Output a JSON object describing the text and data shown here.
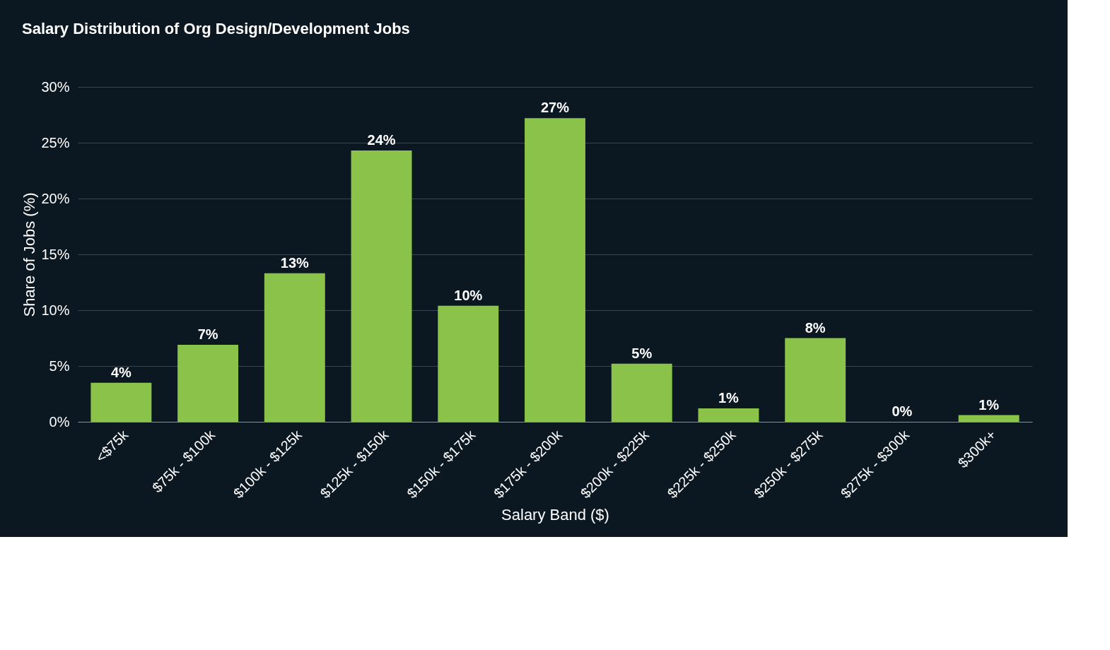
{
  "chart_data": {
    "type": "bar",
    "title": "Salary Distribution of Org Design/Development Jobs",
    "xlabel": "Salary Band ($)",
    "ylabel": "Share of Jobs (%)",
    "categories": [
      "<$75k",
      "$75k - $100k",
      "$100k - $125k",
      "$125k - $150k",
      "$150k - $175k",
      "$175k - $200k",
      "$200k - $225k",
      "$225k - $250k",
      "$250k - $275k",
      "$275k - $300k",
      "$300k+"
    ],
    "values": [
      3.5,
      6.9,
      13.3,
      24.3,
      10.4,
      27.2,
      5.2,
      1.2,
      7.5,
      0,
      0.6
    ],
    "value_labels": [
      "4%",
      "7%",
      "13%",
      "24%",
      "10%",
      "27%",
      "5%",
      "1%",
      "8%",
      "0%",
      "1%"
    ],
    "color": "#8bc34a",
    "ylim": [
      0,
      30
    ],
    "yticks": [
      {
        "value": 0,
        "label": "0%"
      },
      {
        "value": 5,
        "label": "5%"
      },
      {
        "value": 10,
        "label": "10%"
      },
      {
        "value": 15,
        "label": "15%"
      },
      {
        "value": 20,
        "label": "20%"
      },
      {
        "value": 25,
        "label": "25%"
      },
      {
        "value": 30,
        "label": "30%"
      }
    ],
    "grid": "y"
  }
}
